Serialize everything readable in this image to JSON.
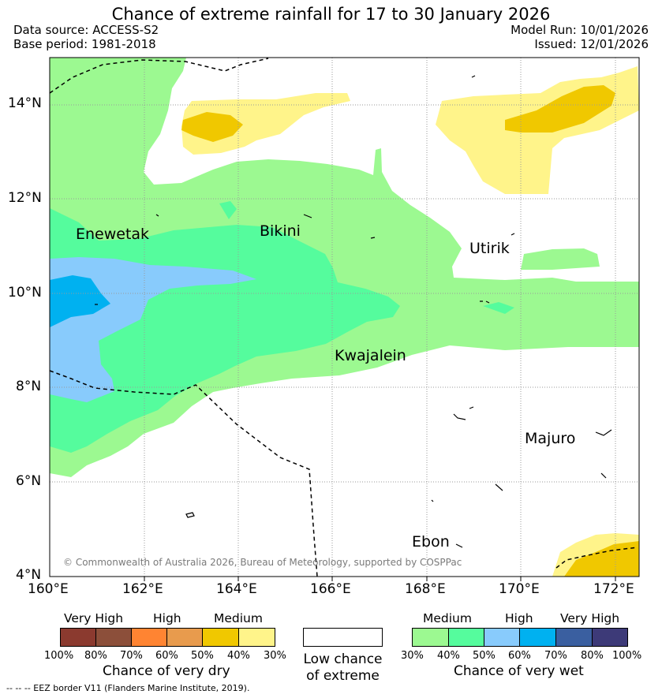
{
  "title": "Chance of extreme rainfall for 17 to 30 January 2026",
  "meta": {
    "data_source": "Data source: ACCESS-S2",
    "base_period": "Base period: 1981-2018",
    "model_run": "Model Run: 10/01/2026",
    "issued": "Issued: 12/01/2026"
  },
  "axes": {
    "lat_labels": [
      "14°N",
      "12°N",
      "10°N",
      "8°N",
      "6°N",
      "4°N"
    ],
    "lon_labels": [
      "160°E",
      "162°E",
      "164°E",
      "166°E",
      "168°E",
      "170°E",
      "172°E"
    ]
  },
  "places": [
    "Enewetak",
    "Bikini",
    "Utirik",
    "Kwajalein",
    "Majuro",
    "Ebon"
  ],
  "credit": "© Commonwealth of Australia 2026, Bureau of Meteorology, supported by COSPPac",
  "legend": {
    "dry": {
      "headers": [
        "Very High",
        "High",
        "Medium"
      ],
      "colors": [
        "#8b3a2f",
        "#8c4f3a",
        "#ff8432",
        "#e89b4d",
        "#f0c800",
        "#fff48a"
      ],
      "percents": [
        "100%",
        "80%",
        "70%",
        "60%",
        "50%",
        "40%",
        "30%"
      ],
      "title": "Chance of very dry"
    },
    "low": {
      "line1": "Low chance",
      "line2": "of extreme"
    },
    "wet": {
      "headers": [
        "Medium",
        "High",
        "Very High"
      ],
      "colors": [
        "#9cf991",
        "#55fc9d",
        "#88cbfc",
        "#00b1f0",
        "#3a5fa0",
        "#3d3a78"
      ],
      "percents": [
        "30%",
        "40%",
        "50%",
        "60%",
        "70%",
        "80%",
        "100%"
      ],
      "title": "Chance of very wet"
    }
  },
  "eez_note": "--  --  -- EEZ border V11 (Flanders Marine Institute, 2019)."
}
